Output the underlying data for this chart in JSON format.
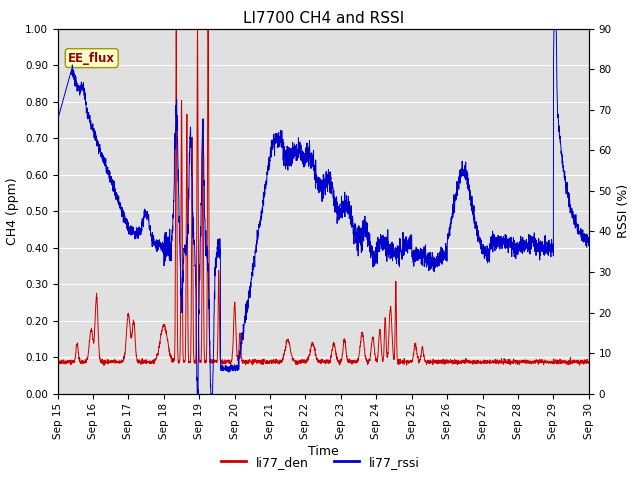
{
  "title": "LI7700 CH4 and RSSI",
  "xlabel": "Time",
  "ylabel_left": "CH4 (ppm)",
  "ylabel_right": "RSSI (%)",
  "ylim_left": [
    0.0,
    1.0
  ],
  "ylim_right": [
    0,
    90
  ],
  "yticks_left": [
    0.0,
    0.1,
    0.2,
    0.3,
    0.4,
    0.5,
    0.6,
    0.7,
    0.8,
    0.9,
    1.0
  ],
  "yticks_right": [
    0,
    10,
    20,
    30,
    40,
    50,
    60,
    70,
    80,
    90
  ],
  "color_ch4": "#cc0000",
  "color_rssi": "#0000cc",
  "legend_labels": [
    "li77_den",
    "li77_rssi"
  ],
  "annotation_text": "EE_flux",
  "bg_color": "#e0e0e0",
  "title_fontsize": 11,
  "axis_fontsize": 9,
  "tick_fontsize": 7.5
}
